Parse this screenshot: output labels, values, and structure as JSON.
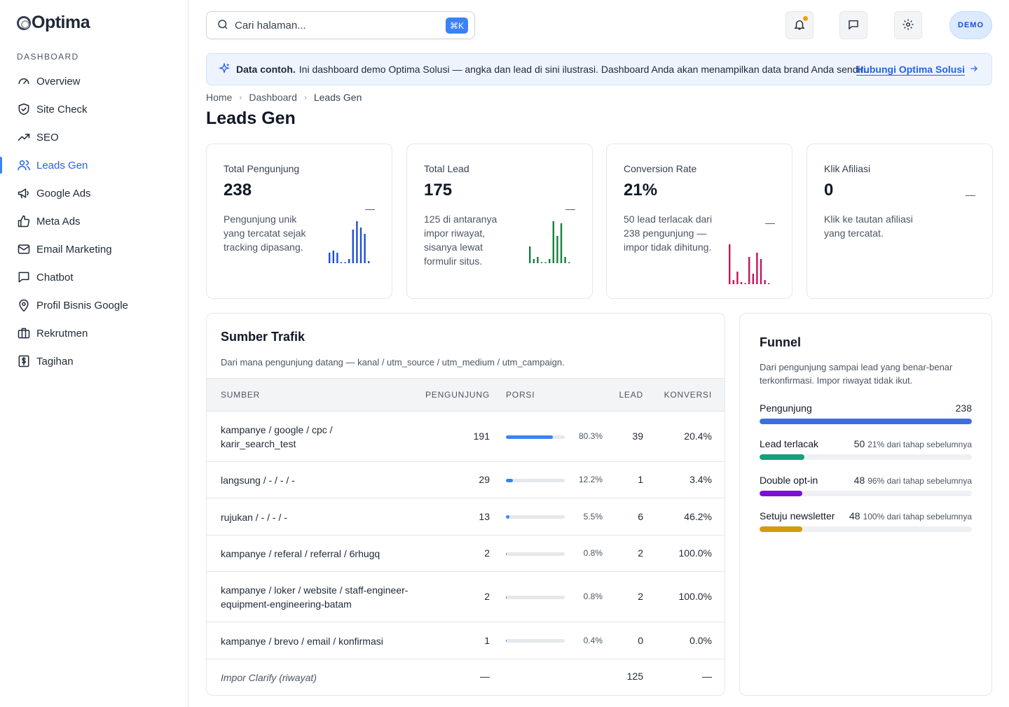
{
  "brand": {
    "name": "Optima"
  },
  "sidebar": {
    "section": "DASHBOARD",
    "items": [
      {
        "label": "Overview",
        "icon": "gauge-icon"
      },
      {
        "label": "Site Check",
        "icon": "shield-check-icon"
      },
      {
        "label": "SEO",
        "icon": "trending-up-icon"
      },
      {
        "label": "Leads Gen",
        "icon": "users-icon",
        "active": true
      },
      {
        "label": "Google Ads",
        "icon": "megaphone-icon"
      },
      {
        "label": "Meta Ads",
        "icon": "thumbs-up-icon"
      },
      {
        "label": "Email Marketing",
        "icon": "mail-icon"
      },
      {
        "label": "Chatbot",
        "icon": "chat-icon"
      },
      {
        "label": "Profil Bisnis Google",
        "icon": "map-pin-icon"
      },
      {
        "label": "Rekrutmen",
        "icon": "briefcase-icon"
      },
      {
        "label": "Tagihan",
        "icon": "invoice-icon"
      }
    ]
  },
  "topbar": {
    "search_placeholder": "Cari halaman...",
    "shortcut": "⌘K",
    "avatar_label": "DEMO"
  },
  "banner": {
    "strong": "Data contoh.",
    "text": "Ini dashboard demo Optima Solusi — angka dan lead di sini ilustrasi. Dashboard Anda akan menampilkan data brand Anda sendiri.",
    "link": "Hubungi Optima Solusi"
  },
  "breadcrumb": [
    "Home",
    "Dashboard",
    "Leads Gen"
  ],
  "page_title": "Leads Gen",
  "kpis": [
    {
      "label": "Total Pengunjung",
      "value": "238",
      "desc": "Pengunjung unik yang tercatat sejak tracking dipasang.",
      "trend": "—",
      "color": "#1d4ed8",
      "spark": [
        0.25,
        0.3,
        0.25,
        0,
        0,
        0.1,
        0.8,
        1,
        0.85,
        0.7,
        0.05
      ]
    },
    {
      "label": "Total Lead",
      "value": "175",
      "desc": "125 di antaranya impor riwayat, sisanya lewat formulir situs.",
      "trend": "—",
      "color": "#15803d",
      "spark": [
        0.4,
        0.1,
        0.15,
        0,
        0,
        0.1,
        1,
        0.65,
        0.95,
        0.15,
        0
      ]
    },
    {
      "label": "Conversion Rate",
      "value": "21%",
      "desc": "50 lead terlacak dari 238 pengunjung — impor tidak dihitung.",
      "trend": "—",
      "color": "#be185d",
      "spark": [
        0.95,
        0.1,
        0.3,
        0.05,
        0,
        0.65,
        0.25,
        0.75,
        0.6,
        0.1,
        0
      ]
    },
    {
      "label": "Klik Afiliasi",
      "value": "0",
      "desc": "Klik ke tautan afiliasi yang tercatat.",
      "trend": "—",
      "color": "#6b7280",
      "spark": []
    }
  ],
  "traffic": {
    "title": "Sumber Trafik",
    "subtitle": "Dari mana pengunjung datang — kanal / utm_source / utm_medium / utm_campaign.",
    "columns": {
      "source": "SUMBER",
      "visitors": "PENGUNJUNG",
      "share": "PORSI",
      "lead": "LEAD",
      "conversion": "KONVERSI"
    },
    "rows": [
      {
        "source": "kampanye / google / cpc / karir_search_test",
        "visitors": "191",
        "share": 80.3,
        "share_label": "80.3%",
        "lead": "39",
        "conversion": "20.4%"
      },
      {
        "source": "langsung / - / - / -",
        "visitors": "29",
        "share": 12.2,
        "share_label": "12.2%",
        "lead": "1",
        "conversion": "3.4%"
      },
      {
        "source": "rujukan / - / - / -",
        "visitors": "13",
        "share": 5.5,
        "share_label": "5.5%",
        "lead": "6",
        "conversion": "46.2%"
      },
      {
        "source": "kampanye / referal / referral / 6rhugq",
        "visitors": "2",
        "share": 0.8,
        "share_label": "0.8%",
        "lead": "2",
        "conversion": "100.0%"
      },
      {
        "source": "kampanye / loker / website / staff-engineer-equipment-engineering-batam",
        "visitors": "2",
        "share": 0.8,
        "share_label": "0.8%",
        "lead": "2",
        "conversion": "100.0%"
      },
      {
        "source": "kampanye / brevo / email / konfirmasi",
        "visitors": "1",
        "share": 0.4,
        "share_label": "0.4%",
        "lead": "0",
        "conversion": "0.0%"
      }
    ],
    "import_row": {
      "source": "Impor Clarify (riwayat)",
      "visitors": "—",
      "lead": "125",
      "conversion": "—"
    }
  },
  "funnel": {
    "title": "Funnel",
    "subtitle": "Dari pengunjung sampai lead yang benar-benar terkonfirmasi. Impor riwayat tidak ikut.",
    "steps": [
      {
        "label": "Pengunjung",
        "value": "238",
        "note": "",
        "fraction": 1.0,
        "color": "#3b6fe0"
      },
      {
        "label": "Lead terlacak",
        "value": "50",
        "note": "21% dari tahap sebelumnya",
        "fraction": 0.21,
        "color": "#15a07a"
      },
      {
        "label": "Double opt-in",
        "value": "48",
        "note": "96% dari tahap sebelumnya",
        "fraction": 0.2,
        "color": "#7e0fd9"
      },
      {
        "label": "Setuju newsletter",
        "value": "48",
        "note": "100% dari tahap sebelumnya",
        "fraction": 0.2,
        "color": "#d59a0b"
      }
    ]
  }
}
